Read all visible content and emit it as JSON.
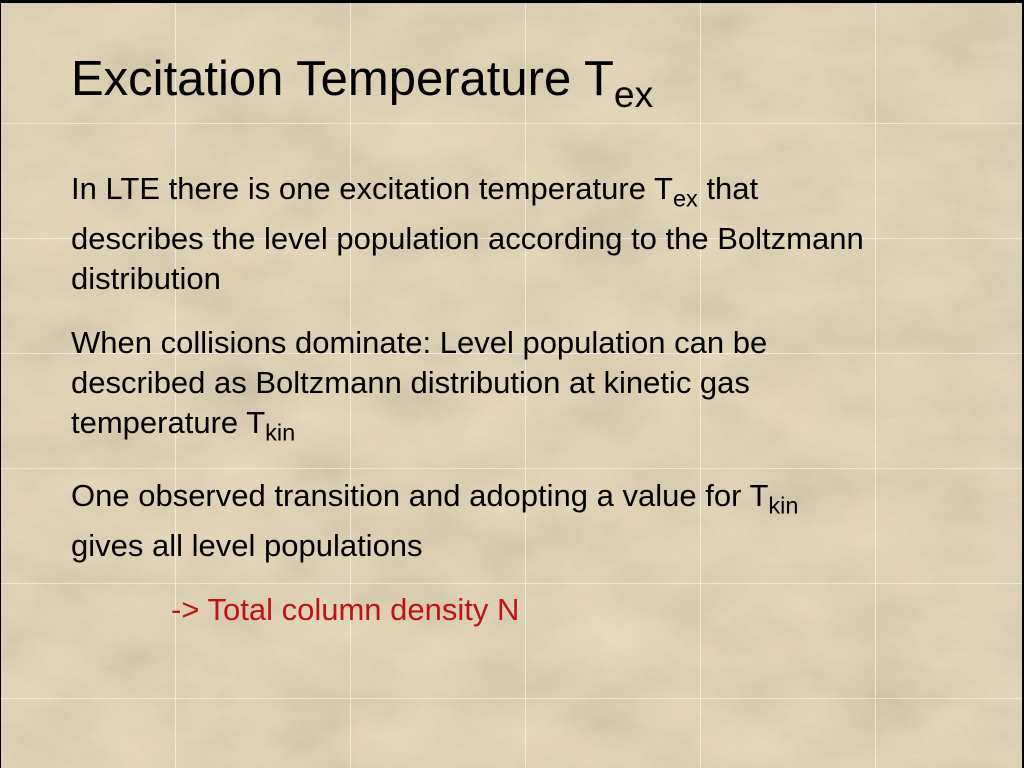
{
  "slide": {
    "title": {
      "name": "slide-title",
      "segments": [
        {
          "t": "Excitation Temperature T"
        },
        {
          "t": "ex",
          "sub": true
        }
      ]
    },
    "paragraphs": [
      {
        "name": "paragraph-lte",
        "lines": [
          [
            {
              "t": "In LTE there is one excitation temperature T"
            },
            {
              "t": "ex",
              "sub": true
            },
            {
              "t": " that"
            }
          ],
          [
            {
              "t": "describes the level population according to the Boltzmann"
            }
          ],
          [
            {
              "t": "distribution"
            }
          ]
        ]
      },
      {
        "name": "paragraph-collisions",
        "lines": [
          [
            {
              "t": "When collisions dominate: Level population can be"
            }
          ],
          [
            {
              "t": "described as Boltzmann distribution at kinetic gas"
            }
          ],
          [
            {
              "t": "temperature T"
            },
            {
              "t": "kin",
              "sub": true
            }
          ]
        ]
      },
      {
        "name": "paragraph-observed-transition",
        "lines": [
          [
            {
              "t": "One observed transition and adopting a value for T"
            },
            {
              "t": "kin",
              "sub": true
            }
          ],
          [
            {
              "t": "gives all level populations"
            }
          ]
        ]
      },
      {
        "name": "paragraph-total-column-density",
        "indent": true,
        "color": "#c01414",
        "lines": [
          [
            {
              "t": "-> Total column density N"
            }
          ]
        ]
      }
    ],
    "colors": {
      "background_base": "#ecdcb5",
      "text": "#000000",
      "accent_red": "#c01414",
      "grid_line": "#ffffff",
      "frame_border": "#000000"
    }
  }
}
